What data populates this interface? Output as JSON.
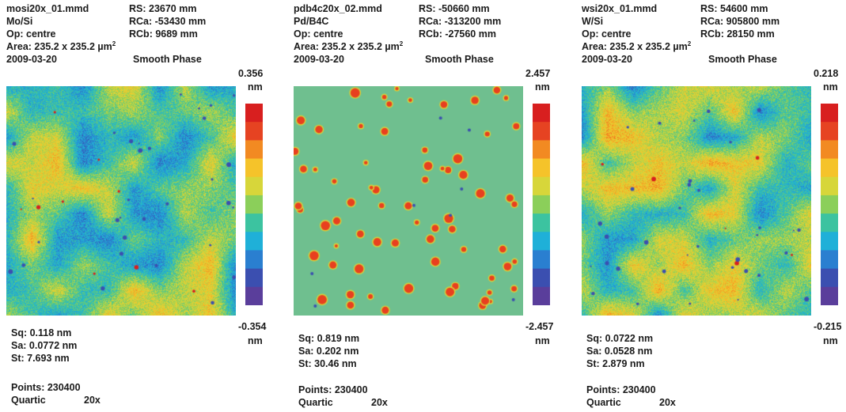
{
  "panels": [
    {
      "file": "mosi20x_01.mmd",
      "rs": "RS:  23670 mm",
      "material": "Mo/Si",
      "rca": "RCa: -53430 mm",
      "op": "Op: centre",
      "rcb": "RCb: 9689 mm",
      "area": "Area: 235.2 x 235.2 µm",
      "area_exp": "2",
      "date": "2009-03-20",
      "phase": "Smooth Phase",
      "cbar_max": "0.356",
      "cbar_max_unit": "nm",
      "cbar_min": "-0.354",
      "cbar_min_unit": "nm",
      "sq": "Sq:  0.118 nm",
      "sa": "Sa:  0.0772 nm",
      "st": "St:   7.693 nm",
      "points": "Points: 230400",
      "fit": "Quartic",
      "mag": "20x"
    },
    {
      "file": "pdb4c20x_02.mmd",
      "rs": "RS:  -50660 mm",
      "material": "Pd/B4C",
      "rca": "RCa: -313200 mm",
      "op": "Op: centre",
      "rcb": "RCb: -27560 mm",
      "area": "Area: 235.2 x 235.2 µm",
      "area_exp": "2",
      "date": "2009-03-20",
      "phase": "Smooth Phase",
      "cbar_max": "2.457",
      "cbar_max_unit": "nm",
      "cbar_min": "-2.457",
      "cbar_min_unit": "nm",
      "sq": "Sq:  0.819 nm",
      "sa": "Sa:  0.202 nm",
      "st": "St:   30.46 nm",
      "points": "Points: 230400",
      "fit": "Quartic",
      "mag": "20x"
    },
    {
      "file": "wsi20x_01.mmd",
      "rs": "RS:  54600 mm",
      "material": "W/Si",
      "rca": "RCa: 905800 mm",
      "op": "Op: centre",
      "rcb": "RCb: 28150 mm",
      "area": "Area: 235.2 x 235.2 µm",
      "area_exp": "2",
      "date": "2009-03-20",
      "phase": "Smooth Phase",
      "cbar_max": "0.218",
      "cbar_max_unit": "nm",
      "cbar_min": "-0.215",
      "cbar_min_unit": "nm",
      "sq": "Sq:  0.0722 nm",
      "sa": "Sa:  0.0528 nm",
      "st": "St:   2.879 nm",
      "points": "Points: 230400",
      "fit": "Quartic",
      "mag": "20x"
    }
  ],
  "colors": {
    "colormap": [
      "#5a3e9b",
      "#3b4fb0",
      "#2a7fd0",
      "#1fb0d8",
      "#3cc3a0",
      "#8bcf5a",
      "#d7d63a",
      "#f5c32a",
      "#f28a22",
      "#e64322",
      "#d81f1f"
    ],
    "pdb4c_background": "#6fbf8f",
    "pdb4c_particle": "#e8401f"
  }
}
